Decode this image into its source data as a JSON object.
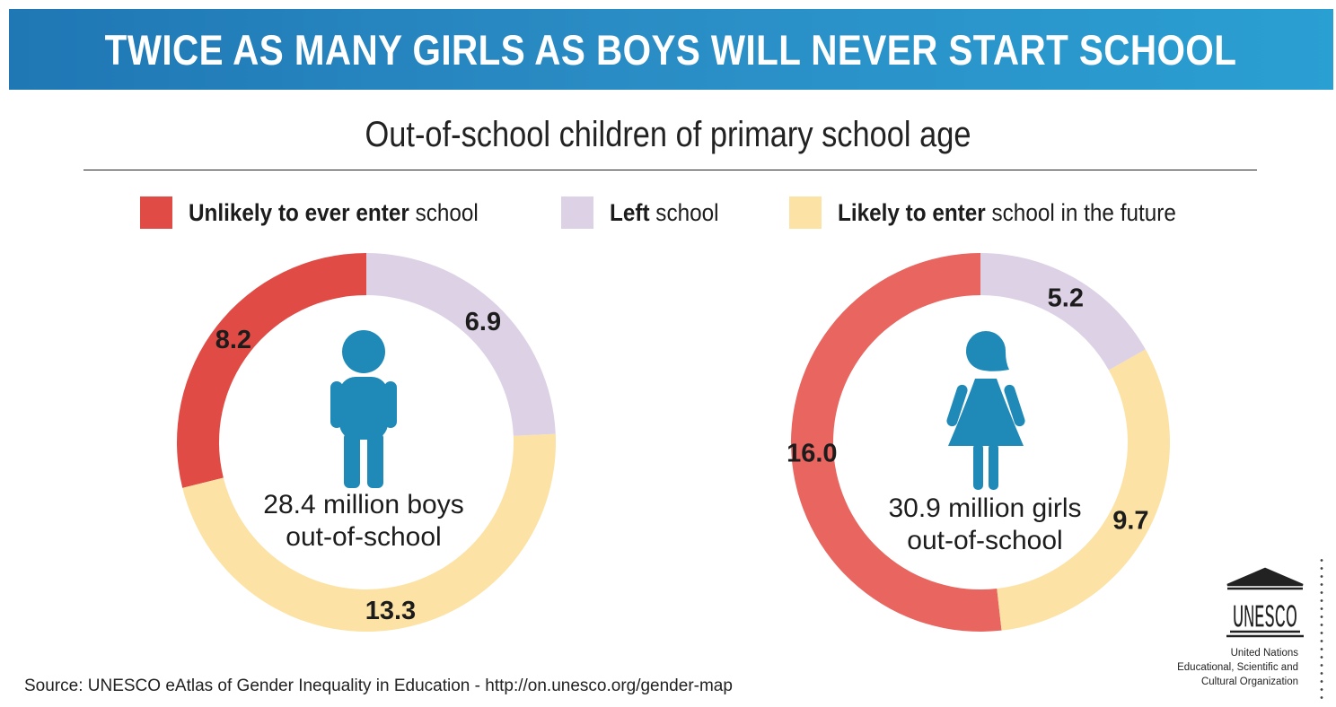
{
  "banner": {
    "title": "TWICE AS MANY GIRLS AS BOYS WILL NEVER START SCHOOL"
  },
  "subtitle": "Out-of-school children of primary school age",
  "legend": [
    {
      "bold": "Unlikely to ever enter",
      "rest": " school",
      "color": "#e04b45"
    },
    {
      "bold": "Left",
      "rest": " school",
      "color": "#ddd1e6"
    },
    {
      "bold": "Likely to enter",
      "rest": " school in the future",
      "color": "#fce2a4"
    }
  ],
  "chart_data": [
    {
      "type": "pie",
      "categories": [
        "Unlikely to ever enter school",
        "Left school",
        "Likely to enter school in the future"
      ],
      "values": [
        8.2,
        6.9,
        13.3
      ],
      "colors": [
        "#e04b45",
        "#ddd1e6",
        "#fce2a4"
      ],
      "center_label": [
        "28.4 million boys",
        "out-of-school"
      ],
      "icon": "boy-icon"
    },
    {
      "type": "pie",
      "categories": [
        "Unlikely to ever enter school",
        "Left school",
        "Likely to enter school in the future"
      ],
      "values": [
        16.0,
        5.2,
        9.7
      ],
      "colors": [
        "#e9655f",
        "#ddd1e6",
        "#fce2a4"
      ],
      "center_label": [
        "30.9 million girls",
        "out-of-school"
      ],
      "icon": "girl-icon"
    }
  ],
  "icon_color": "#1f8ab8",
  "source": "Source: UNESCO eAtlas of Gender Inequality in Education - http://on.unesco.org/gender-map",
  "logo": {
    "text": "UNESCO",
    "icon": "unesco-temple-logo"
  },
  "org_name": [
    "United Nations",
    "Educational, Scientific and",
    "Cultural Organization"
  ]
}
